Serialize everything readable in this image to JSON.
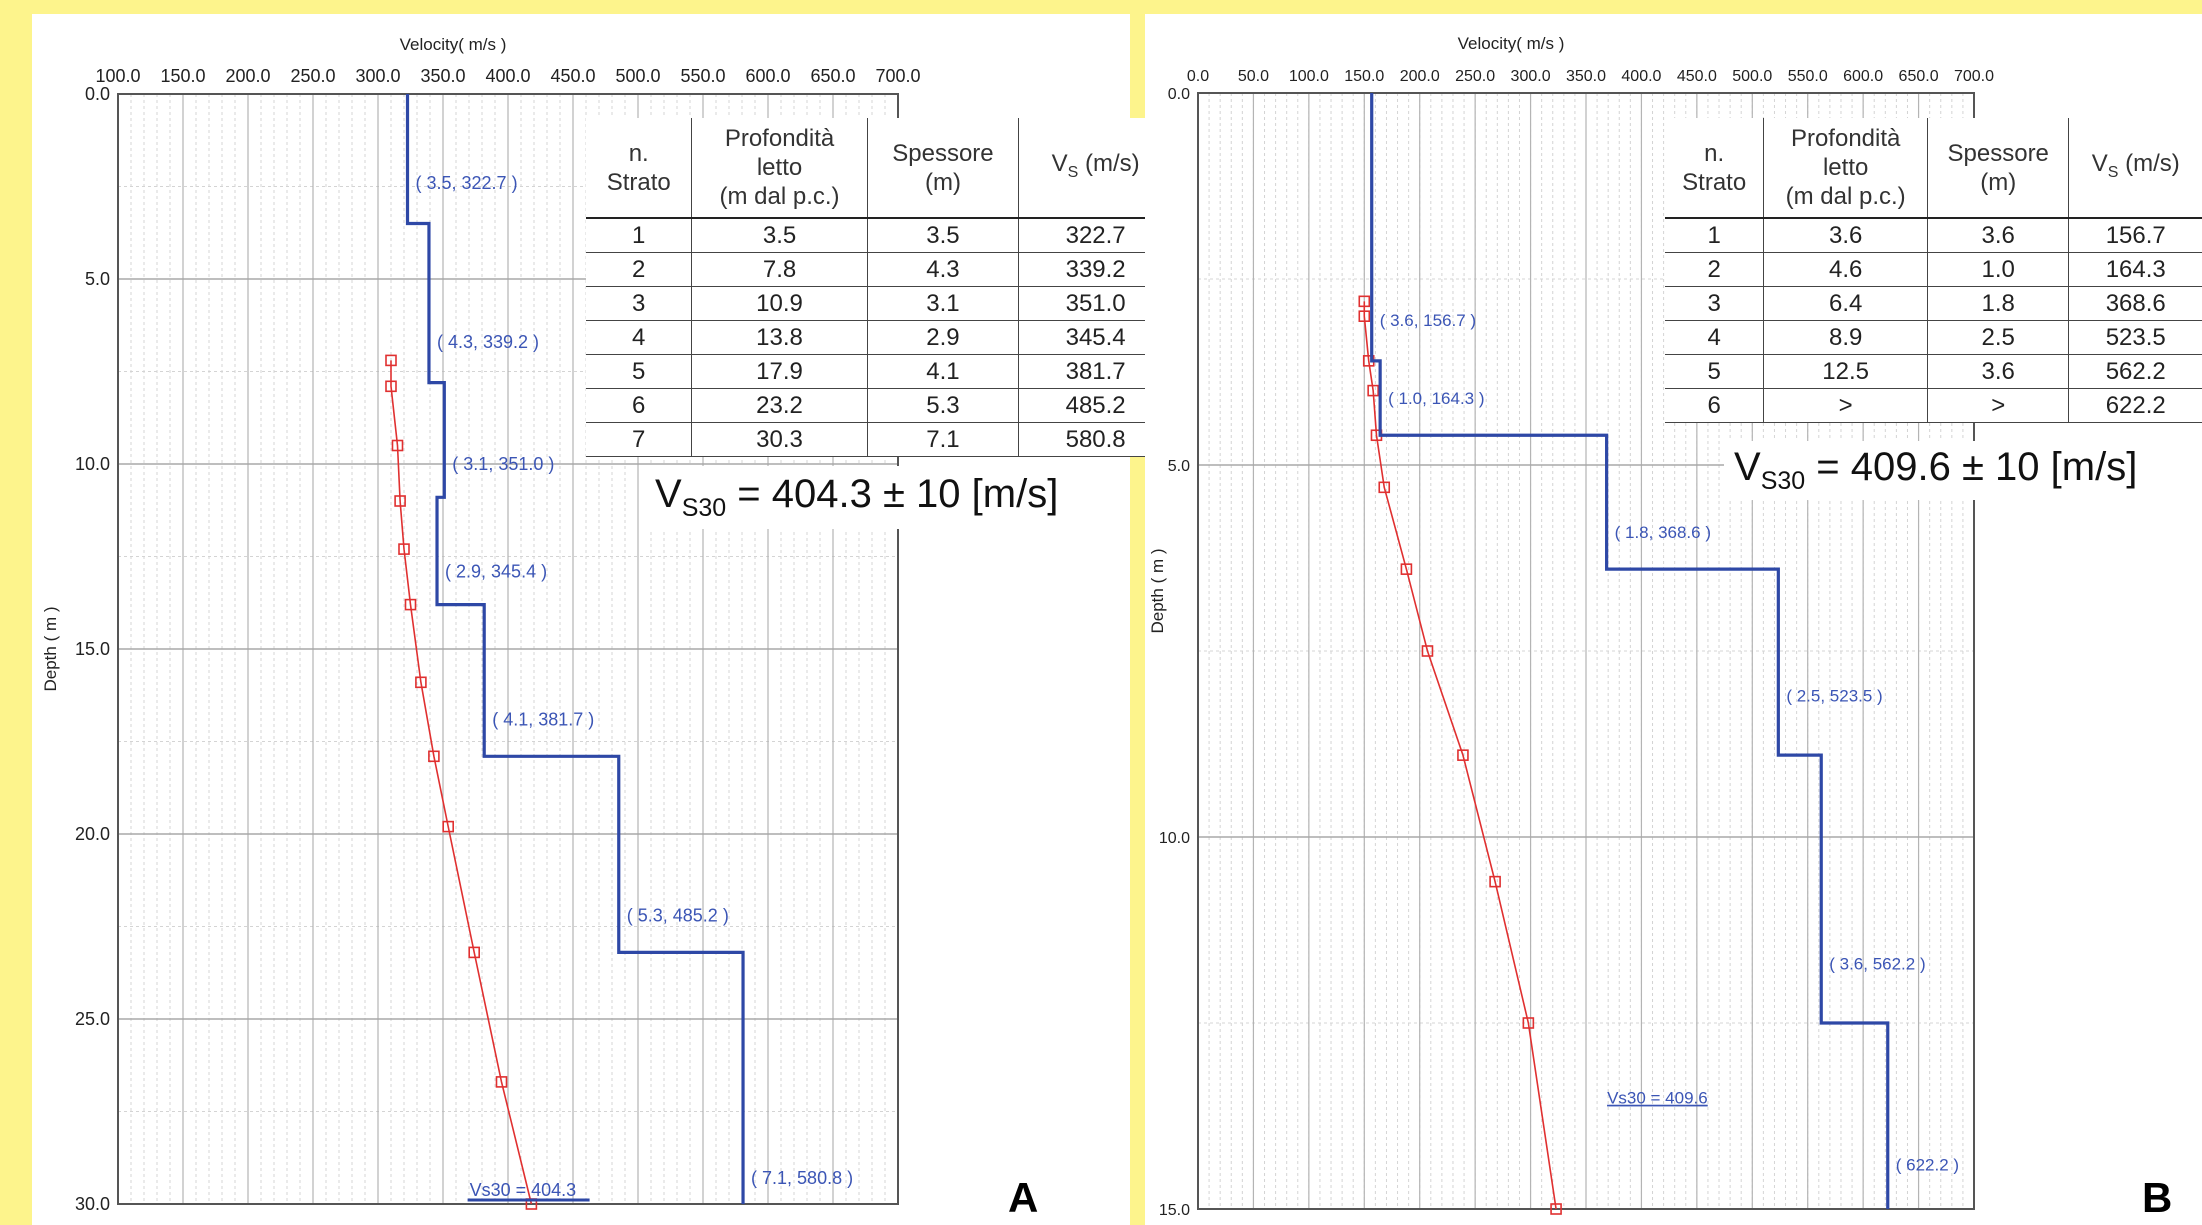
{
  "figure": {
    "background_color": "#fdf48c",
    "profile_color": "#2e48a6",
    "dispersion_color": "#e03030"
  },
  "chart_data": [
    {
      "type": "line",
      "panel_label": "A",
      "xlabel": "Velocity( m/s )",
      "ylabel": "Depth ( m )",
      "xlim": [
        100,
        700
      ],
      "ylim": [
        0,
        30
      ],
      "x_ticks": [
        "100.0",
        "150.0",
        "200.0",
        "250.0",
        "300.0",
        "350.0",
        "400.0",
        "450.0",
        "500.0",
        "550.0",
        "600.0",
        "650.0",
        "700.0"
      ],
      "y_ticks": [
        "0.0",
        "5.0",
        "10.0",
        "15.0",
        "20.0",
        "25.0",
        "30.0"
      ],
      "vs_profile": [
        {
          "top": 0,
          "bottom": 3.5,
          "vs": 322.7
        },
        {
          "top": 3.5,
          "bottom": 7.8,
          "vs": 339.2
        },
        {
          "top": 7.8,
          "bottom": 10.9,
          "vs": 351.0
        },
        {
          "top": 10.9,
          "bottom": 13.8,
          "vs": 345.4
        },
        {
          "top": 13.8,
          "bottom": 17.9,
          "vs": 381.7
        },
        {
          "top": 17.9,
          "bottom": 23.2,
          "vs": 485.2
        },
        {
          "top": 23.2,
          "bottom": 30.3,
          "vs": 580.8
        }
      ],
      "layer_labels": [
        {
          "text": "( 3.5, 322.7 )",
          "depth": 2.4,
          "vs": 322.7
        },
        {
          "text": "( 4.3, 339.2 )",
          "depth": 6.7,
          "vs": 339.2
        },
        {
          "text": "( 3.1, 351.0 )",
          "depth": 10.0,
          "vs": 351.0
        },
        {
          "text": "( 2.9, 345.4 )",
          "depth": 12.9,
          "vs": 345.4
        },
        {
          "text": "( 4.1, 381.7 )",
          "depth": 16.9,
          "vs": 381.7
        },
        {
          "text": "( 5.3, 485.2 )",
          "depth": 22.2,
          "vs": 485.2
        },
        {
          "text": "( 7.1, 580.8 )",
          "depth": 29.3,
          "vs": 580.8
        }
      ],
      "dispersion_points": [
        {
          "x": 310,
          "y": 7.2
        },
        {
          "x": 310,
          "y": 7.9
        },
        {
          "x": 315,
          "y": 9.5
        },
        {
          "x": 317,
          "y": 11.0
        },
        {
          "x": 320,
          "y": 12.3
        },
        {
          "x": 325,
          "y": 13.8
        },
        {
          "x": 333,
          "y": 15.9
        },
        {
          "x": 343,
          "y": 17.9
        },
        {
          "x": 354,
          "y": 19.8
        },
        {
          "x": 374,
          "y": 23.2
        },
        {
          "x": 395,
          "y": 26.7
        },
        {
          "x": 418,
          "y": 30.0
        }
      ],
      "vs30_marker": {
        "text": "Vs30 = 404.3",
        "vs": 404.3,
        "depth": 30
      },
      "table": {
        "headers": [
          "n. Strato",
          "Profondità letto (m dal p.c.)",
          "Spessore (m)",
          "Vs (m/s)"
        ],
        "rows": [
          [
            "1",
            "3.5",
            "3.5",
            "322.7"
          ],
          [
            "2",
            "7.8",
            "4.3",
            "339.2"
          ],
          [
            "3",
            "10.9",
            "3.1",
            "351.0"
          ],
          [
            "4",
            "13.8",
            "2.9",
            "345.4"
          ],
          [
            "5",
            "17.9",
            "4.1",
            "381.7"
          ],
          [
            "6",
            "23.2",
            "5.3",
            "485.2"
          ],
          [
            "7",
            "30.3",
            "7.1",
            "580.8"
          ]
        ]
      },
      "vs30_result": {
        "prefix": "V",
        "subscript": "S30",
        "value": " = 404.3 ± 10 [m/s]"
      }
    },
    {
      "type": "line",
      "panel_label": "B",
      "xlabel": "Velocity( m/s )",
      "ylabel": "Depth ( m )",
      "xlim": [
        0,
        700
      ],
      "ylim": [
        0,
        15
      ],
      "x_ticks": [
        "0.0",
        "50.0",
        "100.0",
        "150.0",
        "200.0",
        "250.0",
        "300.0",
        "350.0",
        "400.0",
        "450.0",
        "500.0",
        "550.0",
        "600.0",
        "650.0",
        "700.0"
      ],
      "y_ticks": [
        "0.0",
        "5.0",
        "10.0",
        "15.0"
      ],
      "vs_profile": [
        {
          "top": 0,
          "bottom": 3.6,
          "vs": 156.7
        },
        {
          "top": 3.6,
          "bottom": 4.6,
          "vs": 164.3
        },
        {
          "top": 4.6,
          "bottom": 6.4,
          "vs": 368.6
        },
        {
          "top": 6.4,
          "bottom": 8.9,
          "vs": 523.5
        },
        {
          "top": 8.9,
          "bottom": 12.5,
          "vs": 562.2
        },
        {
          "top": 12.5,
          "bottom": 15,
          "vs": 622.2
        }
      ],
      "layer_labels": [
        {
          "text": "( 3.6, 156.7 )",
          "depth": 3.05,
          "vs": 156.7
        },
        {
          "text": "( 1.0, 164.3 )",
          "depth": 4.1,
          "vs": 164.3
        },
        {
          "text": "( 1.8, 368.6 )",
          "depth": 5.9,
          "vs": 368.6
        },
        {
          "text": "( 2.5, 523.5 )",
          "depth": 8.1,
          "vs": 523.5
        },
        {
          "text": "( 3.6, 562.2 )",
          "depth": 11.7,
          "vs": 562.2
        },
        {
          "text": "( 622.2 )",
          "depth": 14.4,
          "vs": 622.2
        }
      ],
      "dispersion_points": [
        {
          "x": 150,
          "y": 2.8
        },
        {
          "x": 150,
          "y": 3.0
        },
        {
          "x": 154,
          "y": 3.6
        },
        {
          "x": 158,
          "y": 4.0
        },
        {
          "x": 161,
          "y": 4.6
        },
        {
          "x": 168,
          "y": 5.3
        },
        {
          "x": 188,
          "y": 6.4
        },
        {
          "x": 207,
          "y": 7.5
        },
        {
          "x": 239,
          "y": 8.9
        },
        {
          "x": 268,
          "y": 10.6
        },
        {
          "x": 298,
          "y": 12.5
        },
        {
          "x": 323,
          "y": 15.0
        }
      ],
      "vs30_marker": {
        "text": "Vs30 = 409.6",
        "vs": 409.6,
        "depth": 13.8
      },
      "table": {
        "headers": [
          "n. Strato",
          "Profondità letto (m dal p.c.)",
          "Spessore (m)",
          "Vs (m/s)"
        ],
        "rows": [
          [
            "1",
            "3.6",
            "3.6",
            "156.7"
          ],
          [
            "2",
            "4.6",
            "1.0",
            "164.3"
          ],
          [
            "3",
            "6.4",
            "1.8",
            "368.6"
          ],
          [
            "4",
            "8.9",
            "2.5",
            "523.5"
          ],
          [
            "5",
            "12.5",
            "3.6",
            "562.2"
          ],
          [
            "6",
            ">",
            ">",
            "622.2"
          ]
        ]
      },
      "vs30_result": {
        "prefix": "V",
        "subscript": "S30",
        "value": " = 409.6 ± 10 [m/s]"
      }
    }
  ]
}
